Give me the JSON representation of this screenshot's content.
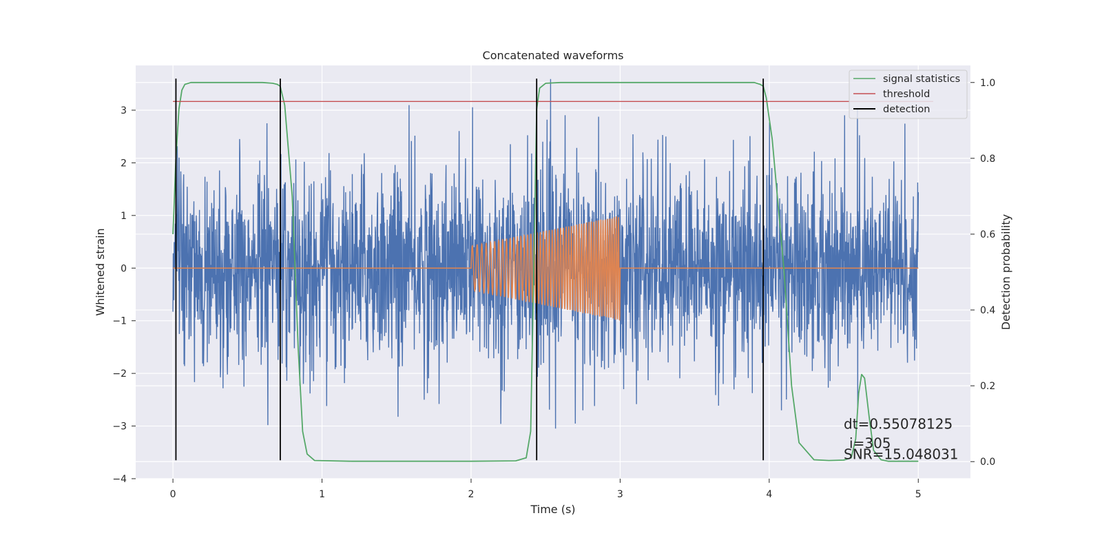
{
  "chart_data": {
    "type": "line",
    "title": "Concatenated waveforms",
    "xlabel": "Time (s)",
    "ylabel": "Whitened strain",
    "y2label": "Detection probability",
    "xlim": [
      -0.25,
      5.35
    ],
    "ylim": [
      -4.0,
      3.85
    ],
    "y2lim": [
      -0.045,
      1.045
    ],
    "x_ticks": [
      0,
      1,
      2,
      3,
      4,
      5
    ],
    "x_tick_labels": [
      "0",
      "1",
      "2",
      "3",
      "4",
      "5"
    ],
    "y_ticks": [
      -4,
      -3,
      -2,
      -1,
      0,
      1,
      2,
      3
    ],
    "y_tick_labels": [
      "−4",
      "−3",
      "−2",
      "−1",
      "0",
      "1",
      "2",
      "3"
    ],
    "y2_ticks": [
      0.0,
      0.2,
      0.4,
      0.6,
      0.8,
      1.0
    ],
    "y2_tick_labels": [
      "0.0",
      "0.2",
      "0.4",
      "0.6",
      "0.8",
      "1.0"
    ],
    "grid": true,
    "legend_position": "top-right",
    "legend": [
      {
        "label": "signal statistics",
        "color": "#55a868"
      },
      {
        "label": "threshold",
        "color": "#c44e52"
      },
      {
        "label": "detection",
        "color": "#000000"
      }
    ],
    "series": [
      {
        "kind": "noise",
        "color": "#4c72b0",
        "x_range": [
          0,
          5
        ],
        "sample_count": 2560,
        "typical_amplitude": 1.2,
        "min": -3.65,
        "max": 3.6
      },
      {
        "kind": "chirp",
        "color": "#dd8452",
        "x_range": [
          0,
          5
        ],
        "chirp_start": 2.0,
        "chirp_end": 3.0,
        "amplitude_start": 0.42,
        "amplitude_end": 1.0,
        "cycles": 50
      },
      {
        "name": "signal statistics",
        "color": "#55a868",
        "axis": "right",
        "x": [
          0.0,
          0.02,
          0.04,
          0.06,
          0.08,
          0.12,
          0.2,
          0.4,
          0.6,
          0.67,
          0.7,
          0.72,
          0.75,
          0.8,
          0.84,
          0.87,
          0.9,
          0.95,
          1.2,
          1.6,
          2.0,
          2.3,
          2.37,
          2.4,
          2.42,
          2.44,
          2.46,
          2.5,
          2.6,
          3.0,
          3.5,
          3.9,
          3.94,
          3.96,
          3.98,
          4.02,
          4.1,
          4.15,
          4.2,
          4.3,
          4.4,
          4.5,
          4.55,
          4.58,
          4.6,
          4.62,
          4.64,
          4.67,
          4.7,
          4.75,
          4.8,
          5.0
        ],
        "y": [
          0.6,
          0.8,
          0.93,
          0.98,
          0.995,
          1.0,
          1.0,
          1.0,
          1.0,
          0.998,
          0.995,
          0.99,
          0.94,
          0.7,
          0.3,
          0.08,
          0.02,
          0.003,
          0.001,
          0.001,
          0.001,
          0.002,
          0.01,
          0.08,
          0.5,
          0.93,
          0.985,
          0.998,
          1.0,
          1.0,
          1.0,
          1.0,
          0.995,
          0.99,
          0.96,
          0.85,
          0.5,
          0.2,
          0.05,
          0.005,
          0.003,
          0.004,
          0.01,
          0.06,
          0.18,
          0.23,
          0.22,
          0.12,
          0.03,
          0.005,
          0.001,
          0.001
        ]
      },
      {
        "name": "threshold",
        "color": "#c44e52",
        "axis": "right",
        "x": [
          0.0,
          5.1
        ],
        "y": [
          0.95,
          0.95
        ]
      }
    ],
    "detections": [
      0.02,
      0.72,
      2.44,
      3.96
    ],
    "detection_ymin": -3.65,
    "detection_ymax": 3.6,
    "annotation": {
      "line1": "dt=0.55078125",
      "line2": "i=305",
      "line3": "SNR=15.048031",
      "x": 4.5,
      "y": -3.0
    }
  }
}
